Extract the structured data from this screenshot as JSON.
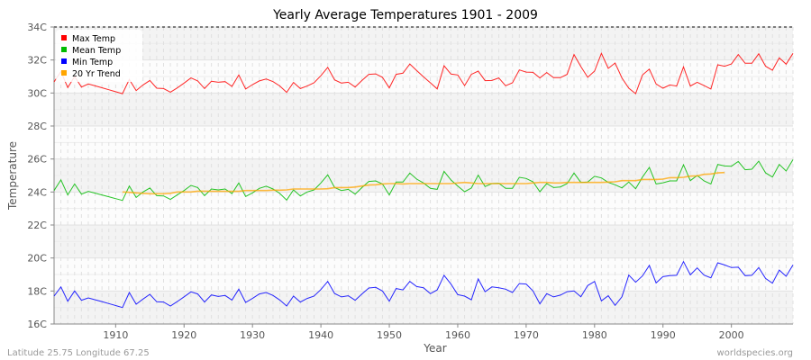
{
  "chart_data": {
    "type": "line",
    "title": "Yearly Average Temperatures 1901 - 2009",
    "xlabel": "Year",
    "ylabel": "Temperature",
    "xlim": [
      1901,
      2009
    ],
    "ylim": [
      16,
      34
    ],
    "x_ticks": [
      1910,
      1920,
      1930,
      1940,
      1950,
      1960,
      1970,
      1980,
      1990,
      2000
    ],
    "y_ticks": [
      "16C",
      "18C",
      "20C",
      "22C",
      "24C",
      "26C",
      "28C",
      "30C",
      "32C",
      "34C"
    ],
    "y_tick_values": [
      16,
      18,
      20,
      22,
      24,
      26,
      28,
      30,
      32,
      34
    ],
    "grid": true,
    "legend_position": "top-left",
    "series": [
      {
        "name": "Max Temp",
        "color": "#ff0000",
        "start_year": 1901,
        "values": [
          30.67,
          31.3,
          30.33,
          31.0,
          30.36,
          30.55,
          30.43,
          30.32,
          30.2,
          30.08,
          29.96,
          30.82,
          30.15,
          30.49,
          30.76,
          30.29,
          30.27,
          30.05,
          30.31,
          30.6,
          30.91,
          30.73,
          30.27,
          30.71,
          30.65,
          30.69,
          30.4,
          31.09,
          30.24,
          30.51,
          30.73,
          30.85,
          30.69,
          30.42,
          30.04,
          30.64,
          30.27,
          30.42,
          30.62,
          31.05,
          31.55,
          30.8,
          30.6,
          30.65,
          30.36,
          30.76,
          31.13,
          31.16,
          30.95,
          30.31,
          31.13,
          31.2,
          31.76,
          31.36,
          30.98,
          30.62,
          30.25,
          31.65,
          31.15,
          31.09,
          30.45,
          31.13,
          31.33,
          30.75,
          30.76,
          30.91,
          30.44,
          30.62,
          31.4,
          31.27,
          31.25,
          30.91,
          31.24,
          30.93,
          30.93,
          31.13,
          32.33,
          31.6,
          30.95,
          31.33,
          32.4,
          31.49,
          31.82,
          30.91,
          30.29,
          29.96,
          31.09,
          31.45,
          30.55,
          30.29,
          30.49,
          30.42,
          31.58,
          30.42,
          30.65,
          30.45,
          30.24,
          31.71,
          31.62,
          31.76,
          32.33,
          31.8,
          31.8,
          32.38,
          31.62,
          31.38,
          32.13,
          31.75,
          32.4
        ]
      },
      {
        "name": "Mean Temp",
        "color": "#00bb00",
        "start_year": 1901,
        "values": [
          24.09,
          24.73,
          23.82,
          24.49,
          23.87,
          24.04,
          23.93,
          23.82,
          23.71,
          23.6,
          23.49,
          24.36,
          23.67,
          24.0,
          24.24,
          23.78,
          23.76,
          23.55,
          23.82,
          24.09,
          24.4,
          24.27,
          23.78,
          24.18,
          24.13,
          24.18,
          23.91,
          24.55,
          23.73,
          23.95,
          24.22,
          24.35,
          24.18,
          23.91,
          23.51,
          24.13,
          23.76,
          24.0,
          24.13,
          24.55,
          25.04,
          24.27,
          24.09,
          24.16,
          23.87,
          24.27,
          24.64,
          24.67,
          24.49,
          23.82,
          24.6,
          24.6,
          25.15,
          24.78,
          24.55,
          24.22,
          24.16,
          25.25,
          24.73,
          24.36,
          24.02,
          24.24,
          25.02,
          24.33,
          24.51,
          24.53,
          24.22,
          24.22,
          24.89,
          24.82,
          24.62,
          24.02,
          24.51,
          24.27,
          24.31,
          24.51,
          25.15,
          24.58,
          24.6,
          24.95,
          24.85,
          24.58,
          24.44,
          24.25,
          24.6,
          24.2,
          24.91,
          25.49,
          24.49,
          24.56,
          24.67,
          24.67,
          25.65,
          24.69,
          25.0,
          24.67,
          24.49,
          25.67,
          25.58,
          25.56,
          25.85,
          25.35,
          25.38,
          25.87,
          25.16,
          24.91,
          25.67,
          25.27,
          25.96
        ]
      },
      {
        "name": "Min Temp",
        "color": "#0000ff",
        "start_year": 1901,
        "values": [
          17.69,
          18.25,
          17.38,
          18.0,
          17.44,
          17.58,
          17.47,
          17.36,
          17.24,
          17.12,
          17.0,
          17.91,
          17.2,
          17.51,
          17.8,
          17.35,
          17.33,
          17.09,
          17.36,
          17.65,
          17.95,
          17.82,
          17.33,
          17.76,
          17.67,
          17.73,
          17.45,
          18.11,
          17.31,
          17.55,
          17.82,
          17.91,
          17.73,
          17.45,
          17.09,
          17.69,
          17.33,
          17.55,
          17.69,
          18.09,
          18.58,
          17.85,
          17.64,
          17.71,
          17.44,
          17.82,
          18.18,
          18.22,
          18.0,
          17.38,
          18.15,
          18.07,
          18.58,
          18.27,
          18.2,
          17.84,
          18.07,
          18.95,
          18.42,
          17.78,
          17.69,
          17.47,
          18.73,
          17.96,
          18.25,
          18.2,
          18.11,
          17.91,
          18.45,
          18.42,
          18.0,
          17.22,
          17.84,
          17.64,
          17.75,
          17.96,
          18.0,
          17.65,
          18.33,
          18.58,
          17.4,
          17.71,
          17.13,
          17.65,
          18.96,
          18.53,
          18.91,
          19.55,
          18.49,
          18.87,
          18.93,
          18.95,
          19.78,
          18.98,
          19.4,
          18.96,
          18.8,
          19.71,
          19.58,
          19.42,
          19.44,
          18.93,
          18.95,
          19.42,
          18.76,
          18.47,
          19.27,
          18.89,
          19.58
        ]
      },
      {
        "name": "20 Yr Trend",
        "color": "#ffa500",
        "start_year": 1911,
        "values": [
          24.0,
          23.98,
          23.95,
          23.92,
          23.89,
          23.89,
          23.89,
          23.92,
          24.0,
          24.0,
          24.0,
          24.05,
          24.05,
          24.04,
          24.04,
          24.04,
          24.04,
          24.04,
          24.09,
          24.09,
          24.09,
          24.09,
          24.11,
          24.11,
          24.13,
          24.18,
          24.18,
          24.18,
          24.18,
          24.18,
          24.2,
          24.27,
          24.27,
          24.27,
          24.3,
          24.36,
          24.42,
          24.44,
          24.49,
          24.51,
          24.51,
          24.49,
          24.51,
          24.51,
          24.51,
          24.51,
          24.51,
          24.51,
          24.51,
          24.55,
          24.58,
          24.55,
          24.51,
          24.51,
          24.51,
          24.51,
          24.51,
          24.51,
          24.51,
          24.51,
          24.55,
          24.58,
          24.58,
          24.55,
          24.55,
          24.58,
          24.58,
          24.58,
          24.58,
          24.58,
          24.58,
          24.6,
          24.62,
          24.69,
          24.69,
          24.69,
          24.76,
          24.76,
          24.76,
          24.78,
          24.87,
          24.87,
          24.89,
          24.96,
          24.98,
          25.07,
          25.09,
          25.16,
          25.18
        ]
      }
    ]
  },
  "footer": {
    "location": "Latitude 25.75 Longitude 67.25",
    "source": "worldspecies.org"
  }
}
